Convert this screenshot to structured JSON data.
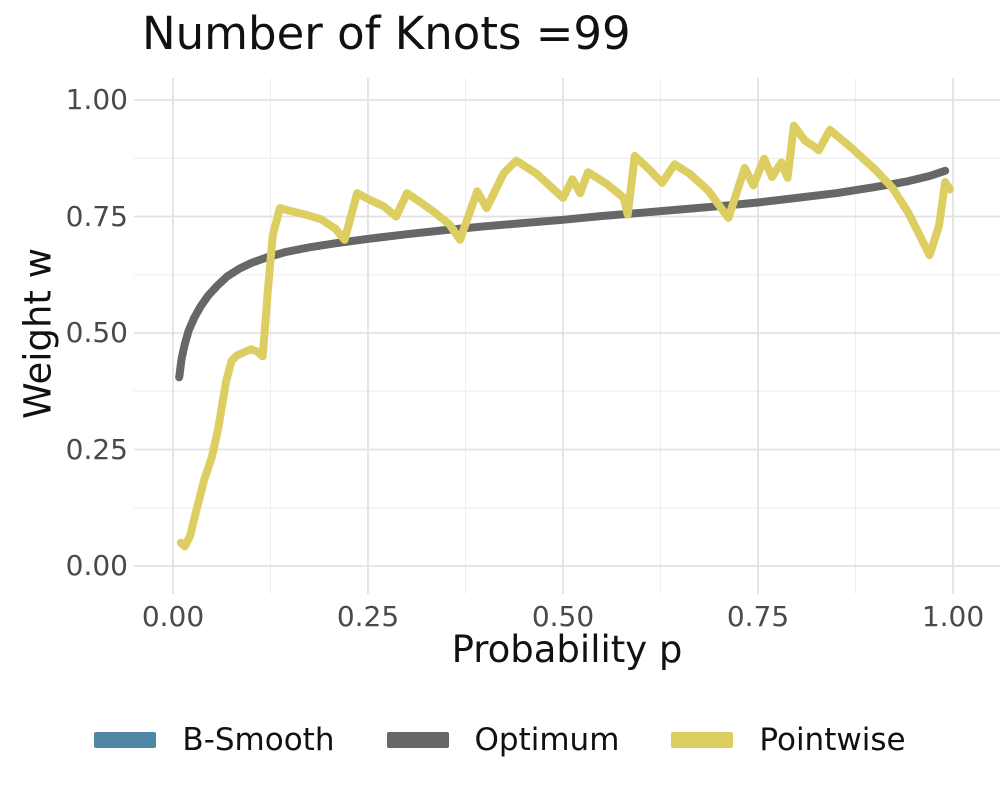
{
  "title": "Number of Knots =99",
  "axes": {
    "x": {
      "label": "Probability p",
      "tick_labels": [
        "0.00",
        "0.25",
        "0.50",
        "0.75",
        "1.00"
      ],
      "tick_values": [
        0,
        0.25,
        0.5,
        0.75,
        1.0
      ],
      "minor_values": [
        0.125,
        0.375,
        0.625,
        0.875
      ],
      "range": [
        0,
        1
      ]
    },
    "y": {
      "label": "Weight w",
      "tick_labels": [
        "0.00",
        "0.25",
        "0.50",
        "0.75",
        "1.00"
      ],
      "tick_values": [
        0,
        0.25,
        0.5,
        0.75,
        1.0
      ],
      "minor_values": [
        0.125,
        0.375,
        0.625,
        0.875
      ],
      "range": [
        0,
        1
      ]
    }
  },
  "style": {
    "background": "#ffffff",
    "grid_major_color": "#e2e2e2",
    "grid_minor_color": "#efefef",
    "title_color": "#111111",
    "tick_label_color": "#4a4a4a",
    "series_stroke_width": 8
  },
  "legend": {
    "position": "bottom",
    "items": [
      {
        "id": "b-smooth",
        "label": "B-Smooth",
        "color": "#4f87a6"
      },
      {
        "id": "optimum",
        "label": "Optimum",
        "color": "#676767"
      },
      {
        "id": "pointwise",
        "label": "Pointwise",
        "color": "#ddce62"
      }
    ]
  },
  "chart_data": {
    "type": "line",
    "title": "Number of Knots =99",
    "xlabel": "Probability p",
    "ylabel": "Weight w",
    "xlim": [
      0,
      1
    ],
    "ylim": [
      0,
      1
    ],
    "grid": "major and minor gridlines, light gray on white",
    "legend_position": "bottom",
    "series": [
      {
        "name": "B-Smooth",
        "color": "#4f87a6",
        "visible_in_plot": false,
        "note": "listed in legend but not visibly distinguishable in the plot (hidden behind the Optimum curve)",
        "points": []
      },
      {
        "name": "Optimum",
        "color": "#676767",
        "visible_in_plot": true,
        "points": [
          [
            0.008,
            0.405
          ],
          [
            0.011,
            0.445
          ],
          [
            0.015,
            0.475
          ],
          [
            0.02,
            0.505
          ],
          [
            0.027,
            0.532
          ],
          [
            0.035,
            0.556
          ],
          [
            0.045,
            0.58
          ],
          [
            0.057,
            0.602
          ],
          [
            0.07,
            0.622
          ],
          [
            0.085,
            0.638
          ],
          [
            0.1,
            0.65
          ],
          [
            0.12,
            0.662
          ],
          [
            0.145,
            0.674
          ],
          [
            0.175,
            0.684
          ],
          [
            0.21,
            0.693
          ],
          [
            0.25,
            0.702
          ],
          [
            0.3,
            0.712
          ],
          [
            0.35,
            0.721
          ],
          [
            0.4,
            0.729
          ],
          [
            0.45,
            0.736
          ],
          [
            0.5,
            0.743
          ],
          [
            0.55,
            0.751
          ],
          [
            0.6,
            0.758
          ],
          [
            0.65,
            0.765
          ],
          [
            0.7,
            0.772
          ],
          [
            0.75,
            0.78
          ],
          [
            0.8,
            0.79
          ],
          [
            0.85,
            0.8
          ],
          [
            0.9,
            0.813
          ],
          [
            0.94,
            0.825
          ],
          [
            0.97,
            0.837
          ],
          [
            0.99,
            0.848
          ]
        ]
      },
      {
        "name": "Pointwise",
        "color": "#ddce62",
        "visible_in_plot": true,
        "points": [
          [
            0.01,
            0.05
          ],
          [
            0.015,
            0.042
          ],
          [
            0.022,
            0.065
          ],
          [
            0.03,
            0.12
          ],
          [
            0.04,
            0.185
          ],
          [
            0.05,
            0.235
          ],
          [
            0.058,
            0.295
          ],
          [
            0.068,
            0.395
          ],
          [
            0.075,
            0.44
          ],
          [
            0.082,
            0.452
          ],
          [
            0.09,
            0.458
          ],
          [
            0.1,
            0.465
          ],
          [
            0.108,
            0.46
          ],
          [
            0.115,
            0.45
          ],
          [
            0.122,
            0.6
          ],
          [
            0.128,
            0.71
          ],
          [
            0.137,
            0.768
          ],
          [
            0.15,
            0.762
          ],
          [
            0.17,
            0.754
          ],
          [
            0.19,
            0.744
          ],
          [
            0.208,
            0.724
          ],
          [
            0.22,
            0.7
          ],
          [
            0.236,
            0.8
          ],
          [
            0.252,
            0.786
          ],
          [
            0.27,
            0.772
          ],
          [
            0.286,
            0.75
          ],
          [
            0.3,
            0.8
          ],
          [
            0.316,
            0.782
          ],
          [
            0.336,
            0.758
          ],
          [
            0.355,
            0.732
          ],
          [
            0.368,
            0.7
          ],
          [
            0.39,
            0.804
          ],
          [
            0.402,
            0.768
          ],
          [
            0.424,
            0.843
          ],
          [
            0.44,
            0.87
          ],
          [
            0.466,
            0.842
          ],
          [
            0.5,
            0.79
          ],
          [
            0.512,
            0.83
          ],
          [
            0.522,
            0.8
          ],
          [
            0.532,
            0.845
          ],
          [
            0.556,
            0.82
          ],
          [
            0.578,
            0.79
          ],
          [
            0.583,
            0.754
          ],
          [
            0.592,
            0.88
          ],
          [
            0.61,
            0.852
          ],
          [
            0.627,
            0.822
          ],
          [
            0.643,
            0.862
          ],
          [
            0.662,
            0.842
          ],
          [
            0.686,
            0.806
          ],
          [
            0.712,
            0.747
          ],
          [
            0.733,
            0.854
          ],
          [
            0.744,
            0.817
          ],
          [
            0.758,
            0.874
          ],
          [
            0.768,
            0.835
          ],
          [
            0.78,
            0.866
          ],
          [
            0.788,
            0.833
          ],
          [
            0.796,
            0.945
          ],
          [
            0.81,
            0.913
          ],
          [
            0.822,
            0.9
          ],
          [
            0.828,
            0.892
          ],
          [
            0.842,
            0.936
          ],
          [
            0.868,
            0.9
          ],
          [
            0.9,
            0.851
          ],
          [
            0.922,
            0.812
          ],
          [
            0.942,
            0.76
          ],
          [
            0.956,
            0.714
          ],
          [
            0.97,
            0.667
          ],
          [
            0.982,
            0.73
          ],
          [
            0.99,
            0.824
          ],
          [
            0.996,
            0.808
          ]
        ]
      }
    ]
  }
}
